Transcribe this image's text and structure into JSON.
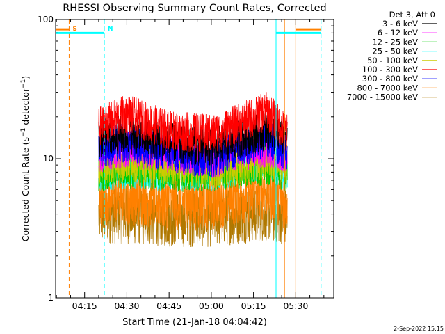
{
  "chart_data": {
    "type": "line",
    "title": "RHESSI Observing Summary Count Rates, Corrected",
    "xlabel": "Start Time (21-Jan-18 04:04:42)",
    "ylabel": "Corrected Count Rate (s⁻¹ detector⁻¹)",
    "y_scale": "log",
    "ylim": [
      1,
      100
    ],
    "y_ticks": [
      "1",
      "10",
      "100"
    ],
    "x_range": [
      "04:04:42",
      "05:43:30"
    ],
    "x_ticks": [
      "04:15",
      "04:30",
      "04:45",
      "05:00",
      "05:15",
      "05:30"
    ],
    "legend_title": "Det 3, Att 0",
    "legend_position": "right",
    "data_window": [
      "04:20",
      "05:27"
    ],
    "series": [
      {
        "name": "3 - 6 keV",
        "color": "#000000",
        "x": [
          "04:20",
          "04:30",
          "04:45",
          "05:00",
          "05:10",
          "05:20",
          "05:27"
        ],
        "values": [
          14,
          15,
          13,
          12,
          14,
          16,
          14
        ]
      },
      {
        "name": "6 - 12 keV",
        "color": "#ff00ff",
        "x": [
          "04:20",
          "04:30",
          "04:45",
          "05:00",
          "05:10",
          "05:20",
          "05:27"
        ],
        "values": [
          11,
          12,
          11,
          10,
          11,
          12,
          11
        ]
      },
      {
        "name": "12 - 25 keV",
        "color": "#00cc00",
        "x": [
          "04:20",
          "04:30",
          "04:45",
          "05:00",
          "05:10",
          "05:20",
          "05:27"
        ],
        "values": [
          8,
          8.5,
          8,
          8,
          8.5,
          9,
          8
        ]
      },
      {
        "name": "25 - 50 keV",
        "color": "#00ffff",
        "x": [
          "04:20",
          "04:30",
          "04:45",
          "05:00",
          "05:10",
          "05:20",
          "05:27"
        ],
        "values": [
          8,
          8.5,
          8,
          8,
          9,
          10,
          8
        ]
      },
      {
        "name": "50 - 100 keV",
        "color": "#cccc00",
        "x": [
          "04:20",
          "04:30",
          "04:45",
          "05:00",
          "05:10",
          "05:20",
          "05:27"
        ],
        "values": [
          9,
          9.5,
          9,
          8.5,
          9,
          10,
          9
        ]
      },
      {
        "name": "100 - 300 keV",
        "color": "#ff0000",
        "x": [
          "04:20",
          "04:30",
          "04:45",
          "05:00",
          "05:10",
          "05:20",
          "05:27"
        ],
        "values": [
          17,
          21,
          16,
          15,
          18,
          22,
          15
        ]
      },
      {
        "name": "300 - 800 keV",
        "color": "#0000ff",
        "x": [
          "04:20",
          "04:30",
          "04:45",
          "05:00",
          "05:10",
          "05:20",
          "05:27"
        ],
        "values": [
          12,
          13,
          11,
          10,
          12,
          14,
          11
        ]
      },
      {
        "name": "800 - 7000 keV",
        "color": "#ff8000",
        "x": [
          "04:20",
          "04:30",
          "04:45",
          "05:00",
          "05:10",
          "05:20",
          "05:27"
        ],
        "values": [
          5.5,
          5.5,
          5,
          5,
          5.5,
          6,
          5
        ]
      },
      {
        "name": "7000 - 15000 keV",
        "color": "#b07800",
        "x": [
          "04:20",
          "04:30",
          "04:45",
          "05:00",
          "05:10",
          "05:20",
          "05:27"
        ],
        "values": [
          4,
          4,
          3.8,
          3.8,
          4,
          4.2,
          3.8
        ]
      }
    ],
    "markers": [
      {
        "label": "S",
        "color": "#ff8000",
        "time": "04:09:30",
        "line_style": "dashed"
      },
      {
        "label": "N",
        "color": "#00ffff",
        "time": "04:22:00",
        "line_style": "dashed"
      },
      {
        "label": "",
        "color": "#00ffff",
        "time": "05:23:00",
        "line_style": "solid"
      },
      {
        "label": "",
        "color": "#ff8000",
        "time": "05:26:00",
        "line_style": "solid"
      },
      {
        "label": "",
        "color": "#ff8000",
        "time": "05:30:00",
        "line_style": "solid"
      },
      {
        "label": "",
        "color": "#00ffff",
        "time": "05:39:00",
        "line_style": "dashed"
      }
    ],
    "flag_bars": [
      {
        "color": "#ff8000",
        "from": "04:04:42",
        "to": "04:09:30",
        "level": 85
      },
      {
        "color": "#00ffff",
        "from": "04:04:42",
        "to": "04:22:00",
        "level": 80
      },
      {
        "color": "#00ffff",
        "from": "05:23:00",
        "to": "05:39:00",
        "level": 80
      },
      {
        "color": "#ff8000",
        "from": "05:30:00",
        "to": "05:39:00",
        "level": 85
      }
    ]
  },
  "footer": {
    "date": "2-Sep-2022 15:15"
  }
}
